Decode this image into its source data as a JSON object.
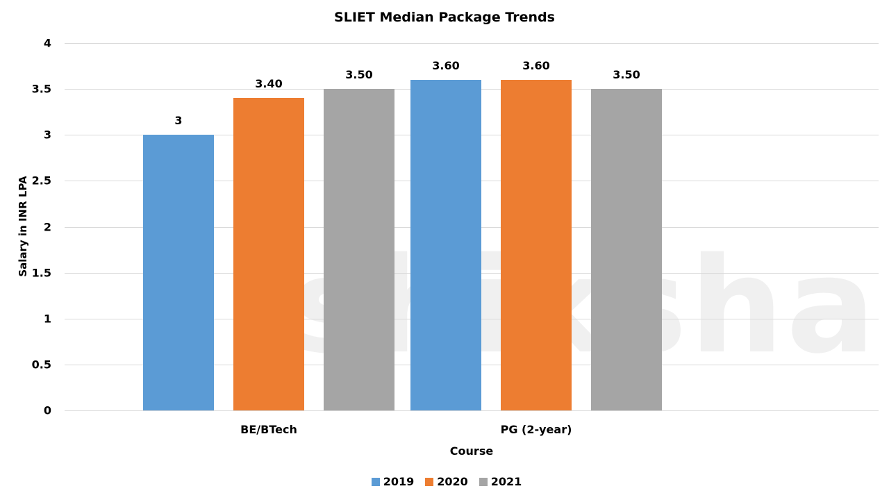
{
  "chart_data": {
    "type": "bar",
    "title": "SLIET Median Package Trends",
    "xlabel": "Course",
    "ylabel": "Salary in INR LPA",
    "ylim": [
      0,
      4
    ],
    "yticks": [
      "0",
      "0.5",
      "1",
      "1.5",
      "2",
      "2.5",
      "3",
      "3.5",
      "4"
    ],
    "grid": true,
    "legend_position": "bottom",
    "categories": [
      "BE/BTech",
      "PG (2-year)"
    ],
    "series": [
      {
        "name": "2019",
        "color": "#5b9bd5",
        "values": [
          3.0,
          3.6
        ],
        "labels": [
          "3",
          "3.60"
        ]
      },
      {
        "name": "2020",
        "color": "#ed7d31",
        "values": [
          3.4,
          3.6
        ],
        "labels": [
          "3.40",
          "3.60"
        ]
      },
      {
        "name": "2021",
        "color": "#a5a5a5",
        "values": [
          3.5,
          3.5
        ],
        "labels": [
          "3.50",
          "3.50"
        ]
      }
    ],
    "watermark": "shiksha"
  }
}
